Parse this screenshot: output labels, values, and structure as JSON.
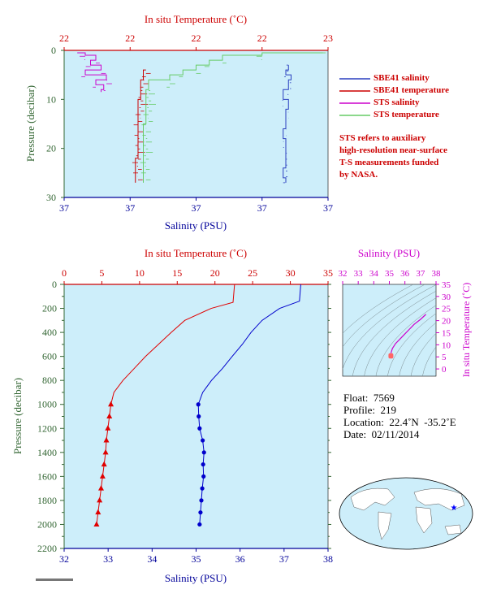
{
  "chart_data": [
    {
      "type": "line",
      "top_xlabel": "In situ Temperature (˚C)",
      "top_ticks": [
        "22",
        "22",
        "22",
        "22",
        "23"
      ],
      "bottom_xlabel": "Salinity (PSU)",
      "bottom_ticks": [
        "37",
        "37",
        "37",
        "37",
        "37"
      ],
      "ylabel": "Pressure (decibar)",
      "ylim": [
        30,
        0
      ],
      "yticks": [
        0,
        10,
        20,
        30
      ],
      "series": [
        {
          "name": "SBE41 salinity",
          "color": "#2a3fbf",
          "x": [
            0.85,
            0.85,
            0.84,
            0.86,
            0.85,
            0.83,
            0.85,
            0.84,
            0.84,
            0.83,
            0.84,
            0.84,
            0.84,
            0.83,
            0.84
          ],
          "y": [
            3,
            4,
            5,
            6,
            8,
            10,
            12,
            14,
            16,
            18,
            20,
            22,
            24,
            26,
            27
          ]
        },
        {
          "name": "SBE41 temperature",
          "color": "#cc0000",
          "x": [
            0.31,
            0.3,
            0.29,
            0.29,
            0.28,
            0.28,
            0.28,
            0.27
          ],
          "y": [
            4,
            6,
            8,
            10,
            14,
            18,
            22,
            27
          ]
        },
        {
          "name": "STS salinity",
          "color": "#cc00cc",
          "x": [
            0.05,
            0.08,
            0.12,
            0.1,
            0.14,
            0.08,
            0.16,
            0.12,
            0.15,
            0.14
          ],
          "y": [
            0.5,
            1,
            2,
            3,
            4,
            5,
            6,
            7,
            8,
            8.5
          ]
        },
        {
          "name": "STS temperature",
          "color": "#66cc66",
          "x": [
            0.98,
            0.75,
            0.6,
            0.55,
            0.5,
            0.45,
            0.4,
            0.32,
            0.31,
            0.3
          ],
          "y": [
            0.5,
            1,
            2,
            3,
            4,
            5,
            6,
            8,
            15,
            27
          ]
        }
      ]
    },
    {
      "type": "line",
      "top_xlabel": "In situ Temperature (˚C)",
      "temp_ticks": [
        0,
        5,
        10,
        15,
        20,
        25,
        30,
        35
      ],
      "bottom_xlabel": "Salinity (PSU)",
      "sal_ticks": [
        32,
        33,
        34,
        35,
        36,
        37,
        38
      ],
      "ylabel": "Pressure (decibar)",
      "ylim": [
        2200,
        0
      ],
      "yticks": [
        0,
        200,
        400,
        600,
        800,
        1000,
        1200,
        1400,
        1600,
        1800,
        2000,
        2200
      ],
      "temperature": {
        "color": "#e00000",
        "pressure": [
          0,
          150,
          200,
          300,
          400,
          500,
          600,
          700,
          800,
          900,
          1000,
          1100,
          1200,
          1300,
          1400,
          1500,
          1600,
          1700,
          1800,
          1900,
          2000
        ],
        "value": [
          22.6,
          22.4,
          19.5,
          16.0,
          14.2,
          12.5,
          10.8,
          9.3,
          7.8,
          6.6,
          6.2,
          6.0,
          5.8,
          5.6,
          5.5,
          5.3,
          5.1,
          4.9,
          4.7,
          4.5,
          4.3
        ]
      },
      "salinity": {
        "color": "#0000cc",
        "pressure": [
          0,
          140,
          200,
          300,
          400,
          500,
          600,
          700,
          800,
          900,
          1000,
          1100,
          1200,
          1300,
          1400,
          1500,
          1600,
          1700,
          1800,
          1900,
          2000
        ],
        "value": [
          37.38,
          37.35,
          36.9,
          36.5,
          36.25,
          36.05,
          35.82,
          35.6,
          35.35,
          35.15,
          35.05,
          35.06,
          35.08,
          35.15,
          35.18,
          35.16,
          35.17,
          35.14,
          35.12,
          35.1,
          35.08
        ]
      },
      "marker_from_pressure": 1000
    },
    {
      "type": "scatter",
      "xlabel": "Salinity (PSU)",
      "ylabel": "In situ Temperature (˚C)",
      "xticks": [
        32,
        33,
        34,
        35,
        36,
        37,
        38
      ],
      "yticks": [
        0,
        5,
        10,
        15,
        20,
        25,
        30,
        35
      ],
      "xlim": [
        32,
        38
      ],
      "ylim": [
        -3,
        35
      ],
      "profile": {
        "color": "#cc00cc",
        "salinity": [
          35.1,
          35.2,
          35.4,
          35.7,
          36.0,
          36.3,
          36.6,
          37.0,
          37.35
        ],
        "temperature": [
          6.5,
          8.5,
          10.5,
          12.5,
          14.5,
          16.5,
          18.5,
          20.5,
          22.6
        ]
      },
      "deep_cluster": {
        "color": "#ff6666",
        "salinity": 35.1,
        "temperature_range": [
          4.3,
          6.5
        ]
      }
    }
  ],
  "legend_title_note": "STS refers to auxiliary high-resolution near-surface T-S measurements funded by NASA.",
  "note_lines": [
    "STS refers to auxiliary",
    "high-resolution near-surface",
    "T-S measurements funded",
    "by NASA."
  ],
  "legend": [
    {
      "label": "SBE41 salinity",
      "color": "#2a3fbf"
    },
    {
      "label": "SBE41 temperature",
      "color": "#cc0000"
    },
    {
      "label": "STS salinity",
      "color": "#cc00cc"
    },
    {
      "label": "STS temperature",
      "color": "#66cc66"
    }
  ],
  "info": {
    "float": "Float:  7569",
    "profile": "Profile:  219",
    "location": "Location:  22.4˚N  -35.2˚E",
    "date": "Date:  02/11/2014"
  },
  "colors": {
    "plot_bg": "#cdeefa",
    "temp_axis": "#cc0000",
    "sal_axis": "#000099",
    "pressure_axis": "#336633",
    "ts_axis": "#cc00cc"
  }
}
